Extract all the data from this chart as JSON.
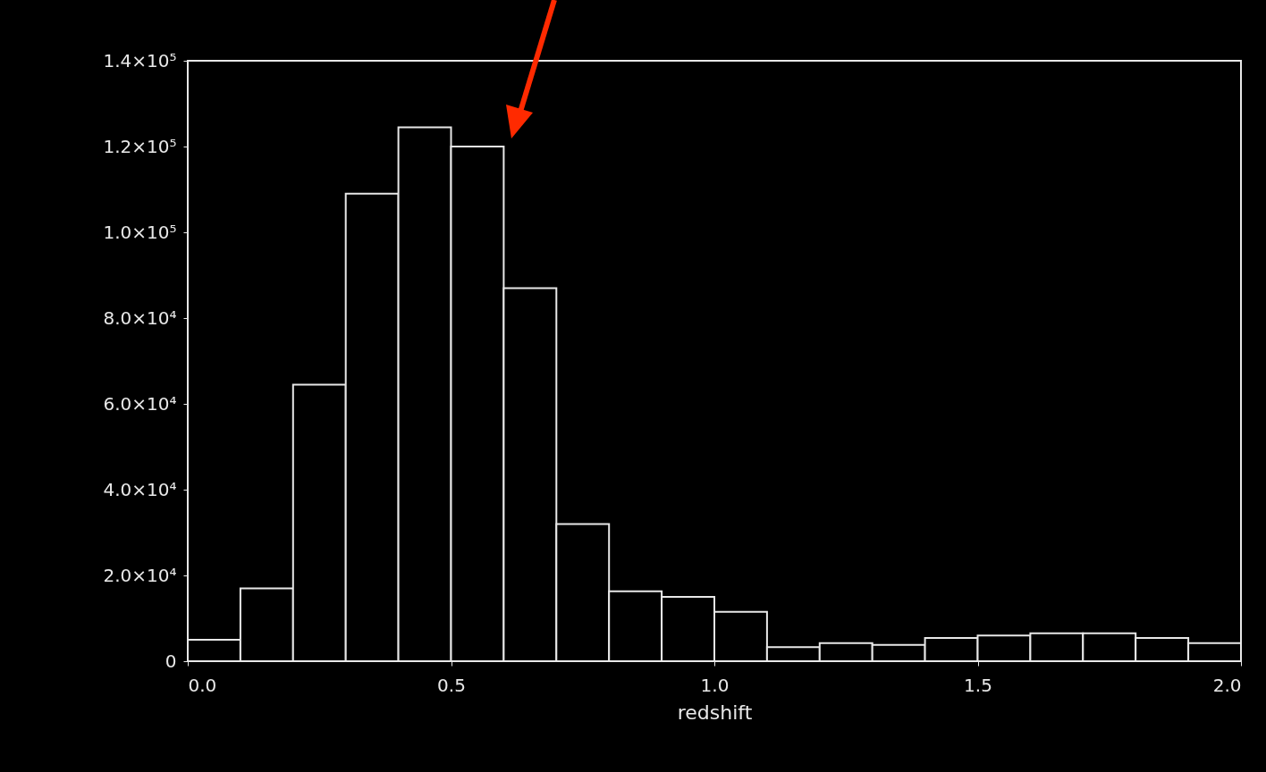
{
  "chart_data": {
    "type": "histogram",
    "xlabel": "redshift",
    "color": "#e8e8e8",
    "bins": [
      0,
      0.1,
      0.2,
      0.3,
      0.4,
      0.5,
      0.6,
      0.7,
      0.8,
      0.9,
      1.0,
      1.1,
      1.2,
      1.3,
      1.4,
      1.5,
      1.6,
      1.7,
      1.8,
      1.9,
      2.0
    ],
    "values": [
      5000,
      17000,
      64500,
      109000,
      124500,
      120000,
      87000,
      32000,
      16300,
      15000,
      11500,
      3300,
      4200,
      3800,
      5400,
      6000,
      6500,
      6500,
      5400,
      4200
    ],
    "xlim": [
      0,
      2
    ],
    "xticks": [
      {
        "value": 0,
        "label": "0.0"
      },
      0.5,
      {
        "value": 1,
        "label": "1.0"
      },
      1.5,
      {
        "value": 2,
        "label": "2.0"
      }
    ],
    "ylim": [
      0,
      140000
    ],
    "yticks": [
      0,
      {
        "value": 20000,
        "label": "2.0×10⁴"
      },
      {
        "value": 40000,
        "label": "4.0×10⁴"
      },
      {
        "value": 60000,
        "label": "6.0×10⁴"
      },
      {
        "value": 80000,
        "label": "8.0×10⁴"
      },
      {
        "value": 100000,
        "label": "1.0×10⁵"
      },
      {
        "value": 120000,
        "label": "1.2×10⁵"
      },
      {
        "value": 140000,
        "label": "1.4×10⁵"
      }
    ]
  }
}
